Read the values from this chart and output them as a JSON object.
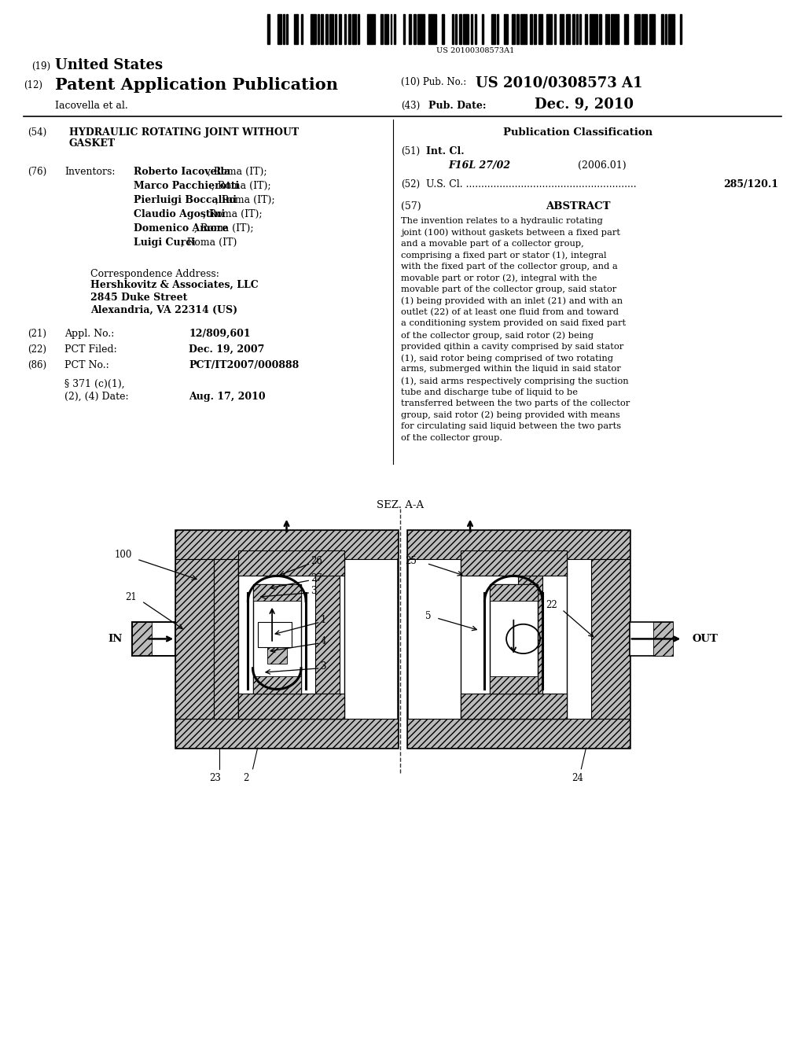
{
  "bg_color": "#ffffff",
  "barcode_text": "US 20100308573A1",
  "header": {
    "line1_num": "(19)",
    "line1_text": "United States",
    "line2_num": "(12)",
    "line2_text": "Patent Application Publication",
    "line3_right1_num": "(10)",
    "line3_right1_label": "Pub. No.:",
    "line3_right1_val": "US 2010/0308573 A1",
    "line4_left": "Iacovella et al.",
    "line4_right_num": "(43)",
    "line4_right_label": "Pub. Date:",
    "line4_right_val": "Dec. 9, 2010"
  },
  "left_col": {
    "title_num": "(54)",
    "title_text": "HYDRAULIC ROTATING JOINT WITHOUT\nGASKET",
    "inventors_num": "(76)",
    "inventors_label": "Inventors:",
    "inventors": [
      "Roberto Iacovella, Roma (IT);",
      "Marco Pacchierotti, Roma (IT);",
      "Pierluigi Boccalini, Roma (IT);",
      "Claudio Agostini, Roma (IT);",
      "Domenico Amore, Roma (IT);",
      "Luigi Curci, Roma (IT)"
    ],
    "corr_label": "Correspondence Address:",
    "corr_lines": [
      "Hershkovitz & Associates, LLC",
      "2845 Duke Street",
      "Alexandria, VA 22314 (US)"
    ],
    "appl_num": "(21)",
    "appl_label": "Appl. No.:",
    "appl_val": "12/809,601",
    "pct_filed_num": "(22)",
    "pct_filed_label": "PCT Filed:",
    "pct_filed_val": "Dec. 19, 2007",
    "pct_no_num": "(86)",
    "pct_no_label": "PCT No.:",
    "pct_no_val": "PCT/IT2007/000888",
    "section_371_line1": "§ 371 (c)(1),",
    "section_371_line2": "(2), (4) Date:",
    "section_371_val": "Aug. 17, 2010"
  },
  "right_col": {
    "pub_class_title": "Publication Classification",
    "int_cl_num": "(51)",
    "int_cl_label": "Int. Cl.",
    "int_cl_code": "F16L 27/02",
    "int_cl_date": "(2006.01)",
    "us_cl_num": "(52)",
    "us_cl_label": "U.S. Cl. ........................................................",
    "us_cl_val": "285/120.1",
    "abstract_num": "(57)",
    "abstract_title": "ABSTRACT",
    "abstract_text": "The invention relates to a hydraulic rotating joint (100) without gaskets between a fixed part and a movable part of a collector group, comprising a fixed part or stator (1), integral with the fixed part of the collector group, and a movable part or rotor (2), integral with the movable part of the collector group, said stator (1) being provided with an inlet (21) and with an outlet (22) of at least one fluid from and toward a conditioning system provided on said fixed part of the collector group, said rotor (2) being provided qithin a cavity comprised by said stator (1), said rotor being comprised of two rotating arms, submerged within the liquid in said stator (1), said arms respectively comprising the suction tube and discharge tube of liquid to be transferred between the two parts of the collector group, said rotor (2) being provided with means for circulating said liquid between the two parts of the collector group."
  }
}
